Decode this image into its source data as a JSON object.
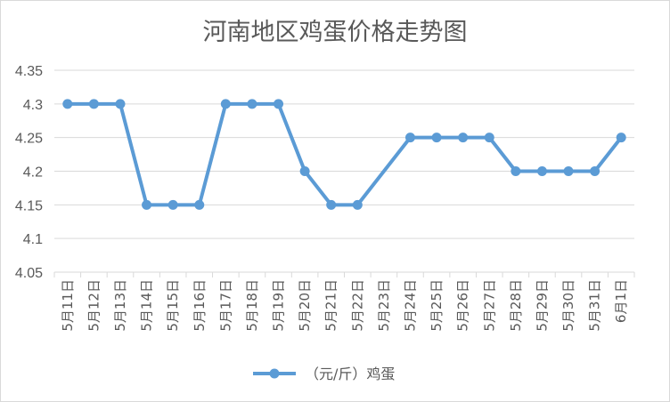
{
  "chart_data": {
    "type": "line",
    "title": "河南地区鸡蛋价格走势图",
    "categories": [
      "5月11日",
      "5月12日",
      "5月13日",
      "5月14日",
      "5月15日",
      "5月16日",
      "5月17日",
      "5月18日",
      "5月19日",
      "5月20日",
      "5月21日",
      "5月22日",
      "5月23日",
      "5月24日",
      "5月25日",
      "5月26日",
      "5月27日",
      "5月28日",
      "5月29日",
      "5月30日",
      "5月31日",
      "6月1日"
    ],
    "series": [
      {
        "name": "（元/斤）鸡蛋",
        "color": "#5b9bd5",
        "values": [
          4.3,
          4.3,
          4.3,
          4.15,
          4.15,
          4.15,
          4.3,
          4.3,
          4.3,
          4.2,
          4.15,
          4.15,
          null,
          4.25,
          4.25,
          4.25,
          4.25,
          4.2,
          4.2,
          4.2,
          4.2,
          4.25
        ]
      }
    ],
    "ylim": [
      4.05,
      4.35
    ],
    "yticks": [
      "4.05",
      "4.1",
      "4.15",
      "4.2",
      "4.25",
      "4.3",
      "4.35"
    ],
    "grid": true,
    "legend": "bottom",
    "xlabel": "",
    "ylabel": ""
  }
}
